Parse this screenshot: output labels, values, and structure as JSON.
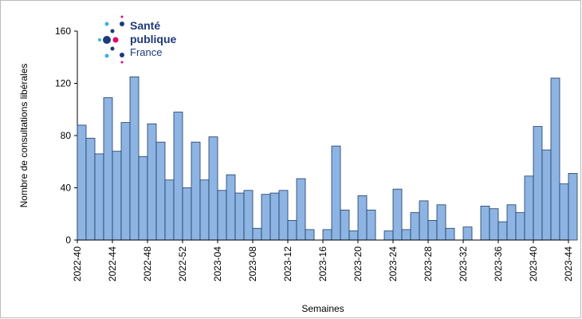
{
  "chart_data": {
    "type": "bar",
    "xlabel": "Semaines",
    "ylabel": "Nombre de consultations libérales",
    "logo": [
      "Santé",
      "publique",
      "France"
    ],
    "categories": [
      "2022-40",
      null,
      null,
      null,
      "2022-44",
      null,
      null,
      null,
      "2022-48",
      null,
      null,
      null,
      "2022-52",
      null,
      null,
      null,
      "2023-04",
      null,
      null,
      null,
      "2023-08",
      null,
      null,
      null,
      "2023-12",
      null,
      null,
      null,
      "2023-16",
      null,
      null,
      null,
      "2023-20",
      null,
      null,
      null,
      "2023-24",
      null,
      null,
      null,
      "2023-28",
      null,
      null,
      null,
      "2023-32",
      null,
      null,
      null,
      "2023-36",
      null,
      null,
      null,
      "2023-40",
      null,
      null,
      null,
      "2023-44"
    ],
    "values": [
      88,
      78,
      66,
      109,
      68,
      90,
      125,
      64,
      89,
      75,
      46,
      98,
      40,
      75,
      46,
      79,
      38,
      50,
      36,
      38,
      9,
      35,
      36,
      38,
      15,
      47,
      8,
      0,
      8,
      72,
      23,
      7,
      34,
      23,
      0,
      7,
      39,
      8,
      21,
      30,
      15,
      27,
      9,
      0,
      10,
      0,
      26,
      24,
      14,
      27,
      21,
      49,
      87,
      69,
      124,
      43,
      51
    ],
    "color": "#8db4e2",
    "edge_color": "#1f3b63",
    "ylim": [
      0,
      160
    ],
    "yticks": [
      0,
      40,
      80,
      120,
      160
    ],
    "grid": false
  }
}
